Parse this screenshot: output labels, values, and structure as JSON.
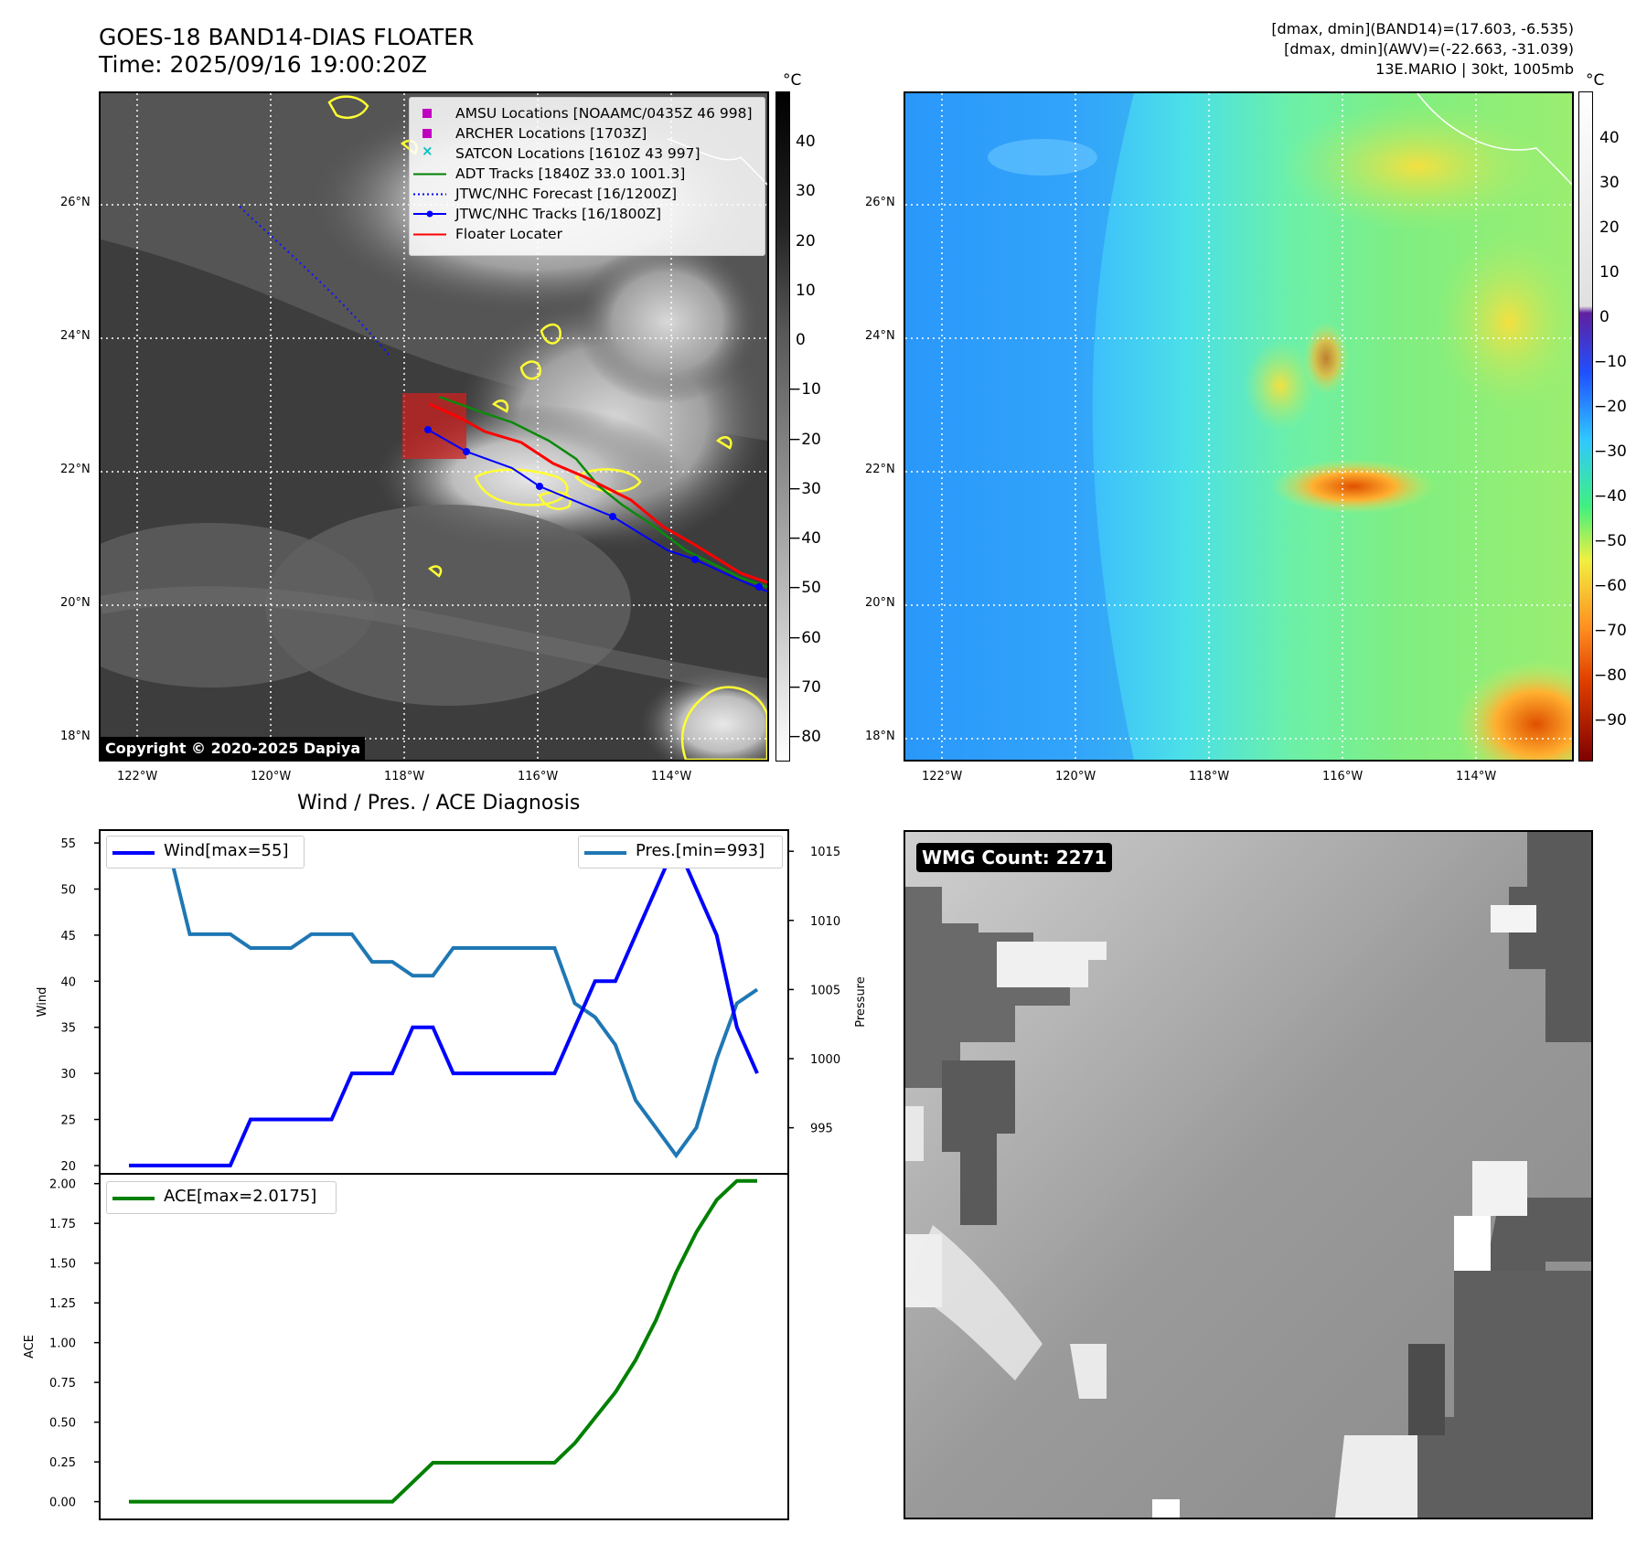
{
  "header": {
    "title_line1": "GOES-18 BAND14-DIAS FLOATER",
    "title_line2": "Time: 2025/09/16 19:00:20Z",
    "info_line1": "[dmax, dmin](BAND14)=(17.603, -6.535)",
    "info_line2": "[dmax, dmin](AWV)=(-22.663, -31.039)",
    "info_line3": "13E.MARIO | 30kt, 1005mb"
  },
  "maps": {
    "lon_labels": [
      "122°W",
      "120°W",
      "118°W",
      "116°W",
      "114°W"
    ],
    "lat_labels": [
      "26°N",
      "24°N",
      "22°N",
      "20°N",
      "18°N"
    ],
    "copyright": "Copyright © 2020-2025 Dapiya",
    "ir_colorbar": {
      "unit": "°C",
      "ticks": [
        "40",
        "30",
        "20",
        "10",
        "0",
        "−10",
        "−20",
        "−30",
        "−40",
        "−50",
        "−60",
        "−70",
        "−80"
      ]
    },
    "wv_colorbar": {
      "unit": "°C",
      "ticks": [
        "40",
        "30",
        "20",
        "10",
        "0",
        "−10",
        "−20",
        "−30",
        "−40",
        "−50",
        "−60",
        "−70",
        "−80",
        "−90"
      ]
    },
    "legend": {
      "amsu": "AMSU Locations [NOAAMC/0435Z 46 998]",
      "archer": "ARCHER Locations [1703Z]",
      "satcon": "SATCON Locations [1610Z 43 997]",
      "adt": "ADT Tracks [1840Z 33.0 1001.3]",
      "forecast": "JTWC/NHC Forecast [16/1200Z]",
      "tracks": "JTWC/NHC Tracks [16/1800Z]",
      "floater": "Floater Locater"
    },
    "colors": {
      "adt": "#008000",
      "forecast": "#0000ff",
      "tracks": "#0000ff",
      "floater": "#ff0000",
      "amsu": "#c000c0",
      "satcon": "#00c0c0",
      "cold_contour": "#ffff33"
    }
  },
  "diagnosis": {
    "title": "Wind / Pres. / ACE Diagnosis",
    "wind_ylabel": "Wind",
    "pres_ylabel": "Pressure",
    "ace_ylabel": "ACE",
    "wind_legend": "Wind[max=55]",
    "pres_legend": "Pres.[min=993]",
    "ace_legend": "ACE[max=2.0175]"
  },
  "wmg": {
    "badge": "WMG Count: 2271"
  },
  "chart_data": [
    {
      "type": "line",
      "title": "Wind / Pres. / ACE Diagnosis",
      "x": [
        0,
        1,
        2,
        3,
        4,
        5,
        6,
        7,
        8,
        9,
        10,
        11,
        12,
        13,
        14,
        15,
        16,
        17,
        18,
        19,
        20,
        21,
        22,
        23,
        24,
        25,
        26,
        27,
        28,
        29,
        30,
        31
      ],
      "series": [
        {
          "name": "Wind[max=55]",
          "axis": "left",
          "color": "#0000ff",
          "values": [
            20,
            20,
            20,
            20,
            20,
            20,
            25,
            25,
            25,
            25,
            25,
            30,
            30,
            30,
            35,
            35,
            30,
            30,
            30,
            30,
            30,
            30,
            35,
            40,
            40,
            45,
            50,
            55,
            50,
            45,
            35,
            30
          ]
        },
        {
          "name": "Pres.[min=993]",
          "axis": "right",
          "color": "#1f77b4",
          "values": [
            1015,
            1015,
            1015,
            1009,
            1009,
            1009,
            1008,
            1008,
            1008,
            1009,
            1009,
            1009,
            1007,
            1007,
            1006,
            1006,
            1008,
            1008,
            1008,
            1008,
            1008,
            1008,
            1004,
            1003,
            1001,
            997,
            995,
            993,
            995,
            1000,
            1004,
            1005
          ]
        }
      ],
      "ylabel": "Wind",
      "ylim": [
        19.3,
        56.2
      ],
      "yticks": [
        20,
        25,
        30,
        35,
        40,
        45,
        50,
        55
      ],
      "ylabel_right": "Pressure",
      "ylim_right": [
        991.8,
        1016.4
      ],
      "yticks_right": [
        995,
        1000,
        1005,
        1010,
        1015
      ],
      "legend_positions": [
        "top-left",
        "top-right"
      ]
    },
    {
      "type": "line",
      "x": [
        0,
        1,
        2,
        3,
        4,
        5,
        6,
        7,
        8,
        9,
        10,
        11,
        12,
        13,
        14,
        15,
        16,
        17,
        18,
        19,
        20,
        21,
        22,
        23,
        24,
        25,
        26,
        27,
        28,
        29,
        30,
        31
      ],
      "series": [
        {
          "name": "ACE[max=2.0175]",
          "color": "#008000",
          "values": [
            0,
            0,
            0,
            0,
            0,
            0,
            0,
            0,
            0,
            0,
            0,
            0,
            0,
            0,
            0.1225,
            0.245,
            0.245,
            0.245,
            0.245,
            0.245,
            0.245,
            0.245,
            0.3675,
            0.5275,
            0.6875,
            0.89,
            1.14,
            1.4425,
            1.695,
            1.8975,
            2.0175,
            2.0175
          ]
        }
      ],
      "ylabel": "ACE",
      "ylim": [
        -0.1,
        2.05
      ],
      "yticks": [
        0.0,
        0.25,
        0.5,
        0.75,
        1.0,
        1.25,
        1.5,
        1.75,
        2.0
      ],
      "legend_positions": [
        "top-left"
      ]
    }
  ]
}
